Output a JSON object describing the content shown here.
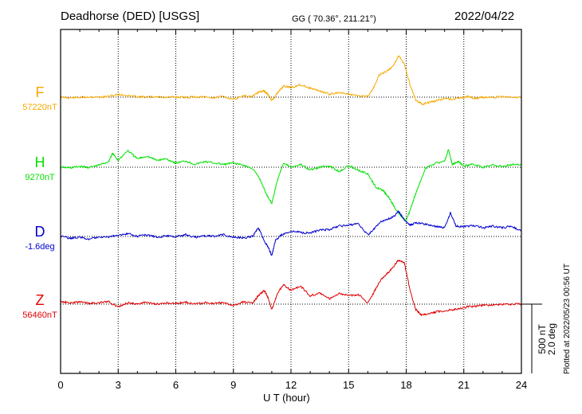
{
  "header": {
    "station": "Deadhorse (DED)  [USGS]",
    "coords": "GG ( 70.36°, 211.21°)",
    "date": "2022/04/22"
  },
  "footer": {
    "plotted": "Plotted at 2022/05/23 00:56 UT"
  },
  "scale_bar": {
    "line1": "500 nT",
    "line2": "2.0 deg"
  },
  "colors": {
    "F": "#f6a800",
    "H": "#00e000",
    "D": "#0000d0",
    "Z": "#e00000",
    "grid": "#000000"
  },
  "chart_data": {
    "type": "line",
    "xlabel": "U T (hour)",
    "xlim": [
      0,
      24
    ],
    "xticks": [
      0,
      3,
      6,
      9,
      12,
      15,
      18,
      21,
      24
    ],
    "grid": "dotted vertical every 3 hours, dotted baseline per series",
    "series": [
      {
        "name": "F",
        "baseline_label": "57220nT",
        "unit": "nT",
        "baseline": 57220,
        "x": [
          0,
          0.5,
          1,
          1.5,
          2,
          2.5,
          3,
          3.5,
          4,
          4.5,
          5,
          5.5,
          6,
          6.5,
          7,
          7.5,
          8,
          8.5,
          9,
          9.5,
          10,
          10.3,
          10.6,
          10.8,
          11,
          11.3,
          11.6,
          12,
          12.5,
          13,
          13.5,
          14,
          14.5,
          15,
          15.5,
          16,
          16.3,
          16.6,
          17,
          17.3,
          17.6,
          17.9,
          18.2,
          18.5,
          18.8,
          19.2,
          19.6,
          20,
          20.4,
          20.8,
          21.2,
          21.6,
          22,
          22.5,
          23,
          23.5,
          24
        ],
        "y": [
          57220,
          57215,
          57218,
          57222,
          57219,
          57225,
          57240,
          57230,
          57224,
          57220,
          57223,
          57219,
          57221,
          57218,
          57222,
          57220,
          57216,
          57224,
          57205,
          57228,
          57225,
          57255,
          57265,
          57240,
          57195,
          57250,
          57300,
          57290,
          57310,
          57285,
          57265,
          57240,
          57255,
          57240,
          57230,
          57225,
          57290,
          57380,
          57410,
          57440,
          57520,
          57460,
          57310,
          57200,
          57170,
          57180,
          57195,
          57210,
          57205,
          57215,
          57225,
          57210,
          57220,
          57218,
          57225,
          57220,
          57220
        ]
      },
      {
        "name": "H",
        "baseline_label": "9270nT",
        "unit": "nT",
        "baseline": 9270,
        "x": [
          0,
          0.5,
          1,
          1.5,
          2,
          2.5,
          2.7,
          3,
          3.5,
          4,
          4.5,
          5,
          5.5,
          6,
          6.5,
          7,
          7.5,
          8,
          8.5,
          9,
          9.5,
          10,
          10.4,
          10.7,
          11,
          11.3,
          11.6,
          12,
          12.5,
          13,
          13.5,
          14,
          14.5,
          15,
          15.5,
          16,
          16.4,
          16.8,
          17.1,
          17.4,
          17.7,
          18,
          18.3,
          18.6,
          19,
          19.5,
          20,
          20.2,
          20.4,
          20.7,
          21,
          21.5,
          22,
          22.5,
          23,
          23.5,
          24
        ],
        "y": [
          9270,
          9265,
          9275,
          9268,
          9285,
          9310,
          9370,
          9320,
          9390,
          9330,
          9350,
          9320,
          9330,
          9300,
          9315,
          9290,
          9310,
          9300,
          9290,
          9300,
          9285,
          9260,
          9180,
          9080,
          9010,
          9180,
          9300,
          9270,
          9290,
          9250,
          9270,
          9280,
          9240,
          9280,
          9250,
          9220,
          9130,
          9100,
          9050,
          8980,
          8920,
          8880,
          9000,
          9120,
          9260,
          9300,
          9310,
          9400,
          9290,
          9310,
          9280,
          9290,
          9270,
          9285,
          9275,
          9290,
          9285
        ]
      },
      {
        "name": "D",
        "baseline_label": "-1.6deg",
        "unit": "deg",
        "baseline": -1.6,
        "x": [
          0,
          0.5,
          1,
          1.5,
          2,
          2.5,
          3,
          3.5,
          4,
          4.5,
          5,
          5.5,
          6,
          6.5,
          7,
          7.5,
          8,
          8.5,
          9,
          9.5,
          10,
          10.3,
          10.6,
          10.8,
          11,
          11.2,
          11.5,
          12,
          12.5,
          13,
          13.5,
          14,
          14.5,
          15,
          15.5,
          16,
          16.3,
          16.6,
          17,
          17.3,
          17.6,
          17.9,
          18.2,
          18.5,
          19,
          19.5,
          20,
          20.3,
          20.6,
          21,
          21.5,
          22,
          22.5,
          23,
          23.5,
          24
        ],
        "y": [
          -1.6,
          -1.65,
          -1.62,
          -1.68,
          -1.6,
          -1.62,
          -1.56,
          -1.52,
          -1.6,
          -1.55,
          -1.62,
          -1.58,
          -1.6,
          -1.55,
          -1.62,
          -1.58,
          -1.6,
          -1.55,
          -1.62,
          -1.64,
          -1.6,
          -1.35,
          -1.72,
          -1.9,
          -2.15,
          -1.7,
          -1.55,
          -1.45,
          -1.48,
          -1.5,
          -1.42,
          -1.4,
          -1.3,
          -1.28,
          -1.22,
          -1.55,
          -1.4,
          -1.2,
          -1.1,
          -1.05,
          -0.88,
          -1.12,
          -1.28,
          -1.2,
          -1.25,
          -1.3,
          -1.35,
          -0.92,
          -1.3,
          -1.32,
          -1.28,
          -1.35,
          -1.3,
          -1.35,
          -1.3,
          -1.45
        ]
      },
      {
        "name": "Z",
        "baseline_label": "56460nT",
        "unit": "nT",
        "baseline": 56460,
        "x": [
          0,
          0.5,
          1,
          1.5,
          2,
          2.5,
          3,
          3.5,
          4,
          4.5,
          5,
          5.5,
          6,
          6.5,
          7,
          7.5,
          8,
          8.5,
          9,
          9.5,
          10,
          10.3,
          10.6,
          10.8,
          11,
          11.3,
          11.6,
          12,
          12.5,
          13,
          13.5,
          14,
          14.5,
          15,
          15.5,
          16,
          16.3,
          16.6,
          17,
          17.3,
          17.6,
          17.9,
          18.2,
          18.5,
          18.8,
          19.2,
          19.6,
          20,
          20.4,
          20.8,
          21.2,
          21.6,
          22,
          22.5,
          23,
          23.5,
          24
        ],
        "y": [
          56480,
          56470,
          56475,
          56465,
          56470,
          56478,
          56440,
          56470,
          56460,
          56475,
          56460,
          56468,
          56465,
          56475,
          56460,
          56470,
          56465,
          56470,
          56450,
          56475,
          56470,
          56520,
          56560,
          56510,
          56420,
          56540,
          56600,
          56560,
          56590,
          56520,
          56540,
          56500,
          56540,
          56520,
          56530,
          56470,
          56540,
          56620,
          56680,
          56720,
          56780,
          56760,
          56560,
          56420,
          56380,
          56390,
          56405,
          56410,
          56420,
          56430,
          56440,
          56445,
          56450,
          56455,
          56460,
          56460,
          56460
        ]
      }
    ]
  }
}
